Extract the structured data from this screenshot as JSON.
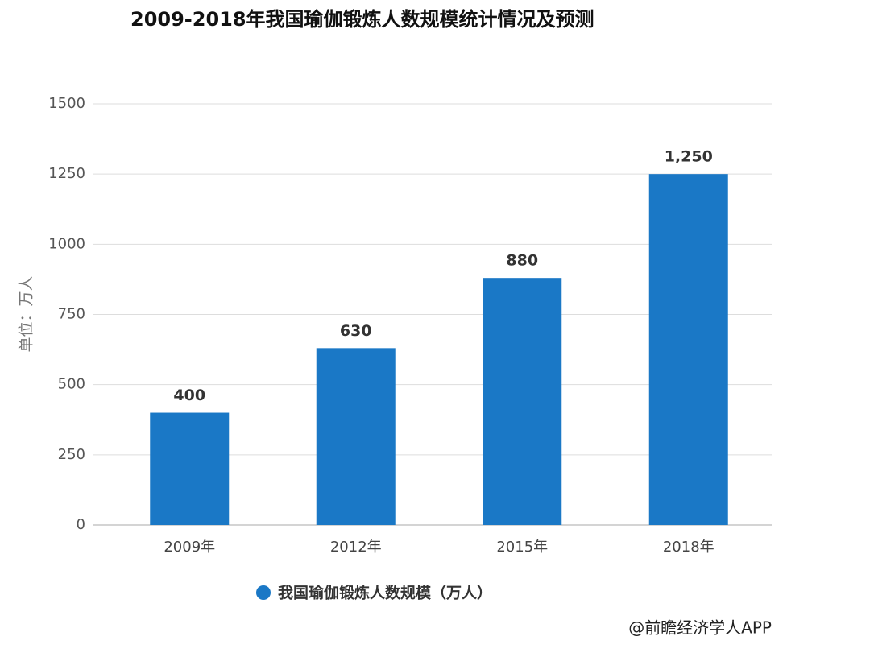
{
  "chart_data": {
    "type": "bar",
    "title": "2009-2018年我国瑜伽锻炼人数规模统计情况及预测",
    "y_label": "单位：万人",
    "categories": [
      "2009年",
      "2012年",
      "2015年",
      "2018年"
    ],
    "series": [
      {
        "name": "我国瑜伽锻炼人数规模（万人）",
        "color": "#1a78c6",
        "values": [
          400,
          630,
          880,
          1250
        ],
        "value_labels": [
          "400",
          "630",
          "880",
          "1,250"
        ]
      }
    ],
    "ylim": [
      0,
      1500
    ],
    "yticks": [
      0,
      250,
      500,
      750,
      1000,
      1250,
      1500
    ],
    "grid": true,
    "source": "@前瞻经济学人APP"
  }
}
